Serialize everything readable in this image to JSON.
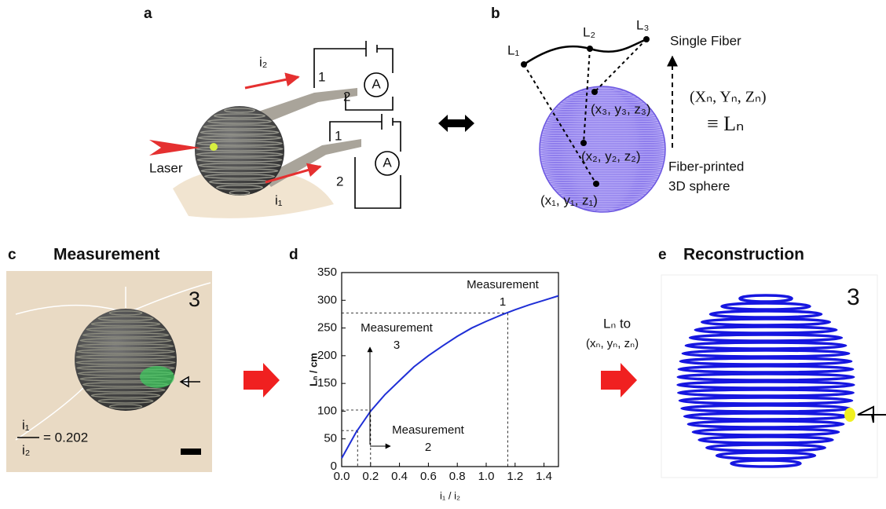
{
  "panels": {
    "a": {
      "label": "a",
      "i2": "i₂",
      "i1": "i₁",
      "c1": [
        "1",
        "2",
        "A"
      ],
      "c2": [
        "1",
        "2",
        "A"
      ],
      "laser": "Laser"
    },
    "b": {
      "label": "b",
      "L1": "L₁",
      "L2": "L₂",
      "L3": "L₃",
      "single": "Single Fiber",
      "coords": "(Xₙ, Yₙ, Zₙ)",
      "equiv": "≡ Lₙ",
      "p3": "(x₃, y₃, z₃)",
      "p2": "(x₂, y₂, z₂)",
      "p1": "(x₁, y₁, z₁)",
      "printed": [
        "Fiber-printed",
        "3D sphere"
      ]
    },
    "c": {
      "label": "c",
      "title": "Measurement",
      "number": "3",
      "num": "i₁",
      "den": "i₂",
      "ratio": "= 0.202"
    },
    "d": {
      "label": "d",
      "to": "Lₙ  to",
      "target": "(xₙ, yₙ, zₙ)"
    },
    "e": {
      "label": "e",
      "title": "Reconstruction",
      "number": "3"
    }
  },
  "chart_data": {
    "type": "line",
    "color": "#1f2fd6",
    "x": [
      0,
      0.1,
      0.2,
      0.3,
      0.4,
      0.5,
      0.6,
      0.7,
      0.8,
      0.9,
      1.0,
      1.1,
      1.2,
      1.3,
      1.4,
      1.5
    ],
    "values": [
      15,
      62,
      100,
      130,
      155,
      180,
      200,
      218,
      235,
      250,
      262,
      273,
      283,
      292,
      300,
      308
    ],
    "xlim": [
      0,
      1.5
    ],
    "ylim": [
      0,
      350
    ],
    "xticks": [
      {
        "value": 0,
        "label": "0.0"
      },
      {
        "value": 0.2,
        "label": "0.2"
      },
      {
        "value": 0.4,
        "label": "0.4"
      },
      {
        "value": 0.6,
        "label": "0.6"
      },
      {
        "value": 0.8,
        "label": "0.8"
      },
      {
        "value": 1.0,
        "label": "1.0"
      },
      {
        "value": 1.2,
        "label": "1.2"
      },
      {
        "value": 1.4,
        "label": "1.4"
      }
    ],
    "yticks": [
      0,
      50,
      100,
      150,
      200,
      250,
      300,
      350
    ],
    "xlabel": "i₁ / i₂",
    "ylabel": "Lₙ / cm",
    "measurements": {
      "x": [
        0.11,
        0.2,
        1.15
      ],
      "y": [
        65,
        102,
        277
      ]
    },
    "annotations": [
      [
        "Measurement",
        "1"
      ],
      [
        "Measurement",
        "3"
      ],
      [
        "Measurement",
        "2"
      ]
    ]
  }
}
